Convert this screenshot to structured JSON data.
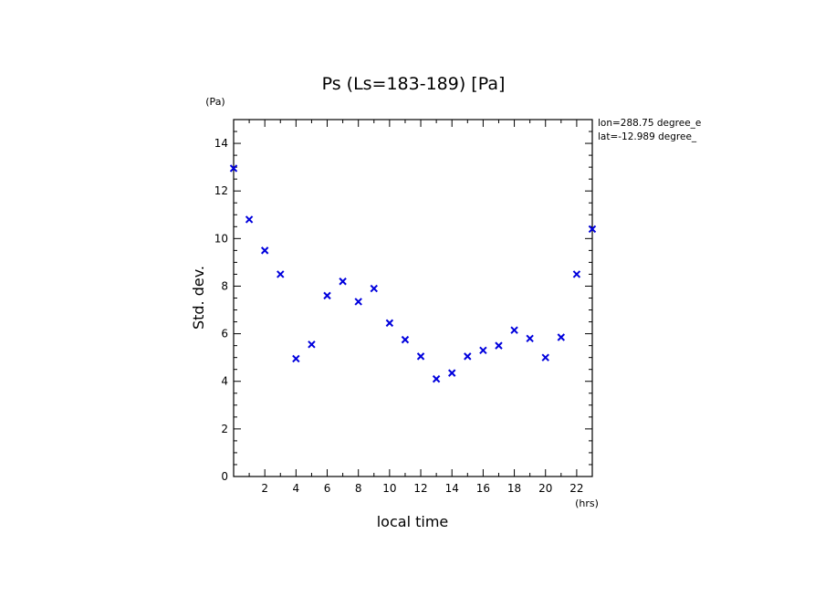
{
  "chart_data": {
    "type": "scatter",
    "title": "Ps (Ls=183-189) [Pa]",
    "xlabel": "local time",
    "ylabel": "Std. dev.",
    "x_unit": "(hrs)",
    "y_unit": "(Pa)",
    "xlim": [
      0,
      23
    ],
    "ylim": [
      0,
      15
    ],
    "xticks": [
      2,
      4,
      6,
      8,
      10,
      12,
      14,
      16,
      18,
      20,
      22
    ],
    "yticks": [
      0,
      2,
      4,
      6,
      8,
      10,
      12,
      14
    ],
    "marker": "x",
    "marker_color": "#0000dd",
    "annotations": [
      "lon=288.75 degree_e",
      "lat=-12.989 degree_"
    ],
    "x": [
      0,
      1,
      2,
      3,
      4,
      5,
      6,
      7,
      8,
      9,
      10,
      11,
      12,
      13,
      14,
      15,
      16,
      17,
      18,
      19,
      20,
      21,
      22,
      23
    ],
    "values": [
      12.95,
      10.8,
      9.5,
      8.5,
      4.95,
      5.55,
      7.6,
      8.2,
      7.35,
      7.9,
      6.45,
      5.75,
      5.05,
      4.1,
      4.35,
      5.05,
      5.3,
      5.5,
      6.15,
      5.8,
      5.0,
      5.85,
      8.5,
      10.4
    ]
  }
}
